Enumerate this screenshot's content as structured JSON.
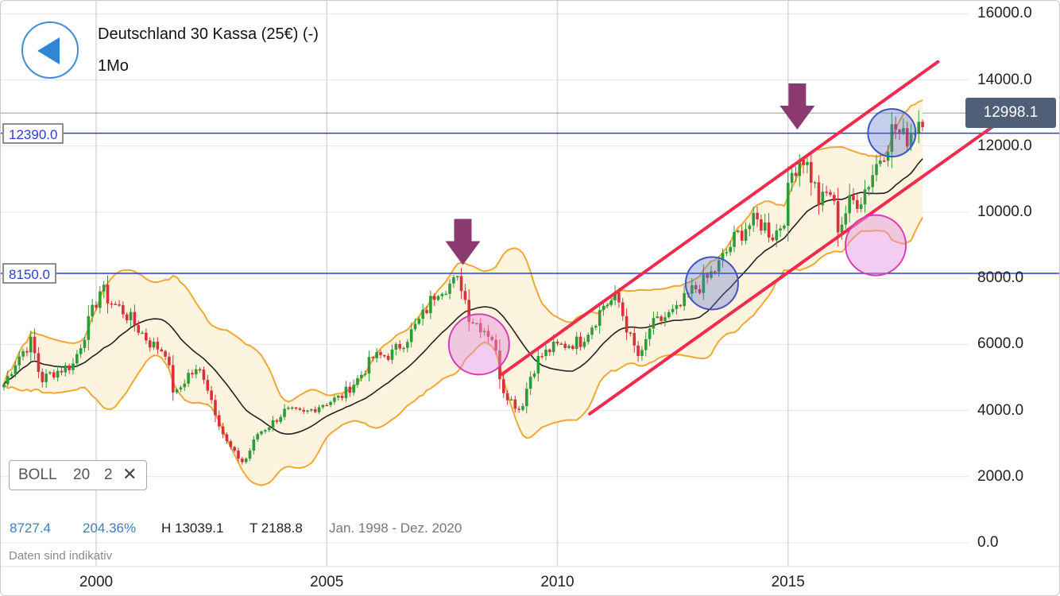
{
  "header": {
    "instrument": "Deutschland 30 Kassa (25€) (-)",
    "timeframe": "1Mo"
  },
  "levels": [
    {
      "label": "12390.0",
      "value": 12390
    },
    {
      "label": "8150.0",
      "value": 8150
    }
  ],
  "last_price": {
    "label": "12998.1",
    "value": 12998.1
  },
  "indicator": {
    "name": "BOLL",
    "period": "20",
    "stddev": "2",
    "remove_icon": "close-icon"
  },
  "stats": {
    "last": "8727.4",
    "change": "204.36%",
    "high": "H 13039.1",
    "low": "T 2188.8",
    "range": "Jan. 1998 - Dez. 2020"
  },
  "disclaimer": "Daten sind indikativ",
  "colors": {
    "up": "#2e9a3a",
    "down": "#d9303a",
    "band": "#f0a830",
    "band_fill": "#fdf4df",
    "middle": "#222222",
    "level": "#2a3fcf",
    "trend": "#f22a4e",
    "arrow": "#8b3a6f",
    "circle_blue": "#4055bf",
    "circle_pink": "#d63ab7",
    "badge": "#4f5f78"
  },
  "chart_data": {
    "type": "candlestick",
    "x_ticks": [
      "2000",
      "2005",
      "2010",
      "2015"
    ],
    "y_ticks": [
      "16000.0",
      "14000.0",
      "12000.0",
      "10000.0",
      "8000.0",
      "6000.0",
      "4000.0",
      "2000.0",
      "0.0"
    ],
    "ylim": [
      0,
      16000
    ],
    "xlim": [
      1998.0,
      2018.6
    ],
    "close_series": [
      [
        1998.0,
        4800
      ],
      [
        1998.3,
        5600
      ],
      [
        1998.6,
        6100
      ],
      [
        1998.8,
        4900
      ],
      [
        1999.0,
        5100
      ],
      [
        1999.5,
        5400
      ],
      [
        1999.9,
        6900
      ],
      [
        2000.1,
        7700
      ],
      [
        2000.3,
        7300
      ],
      [
        2000.6,
        7000
      ],
      [
        2000.9,
        6500
      ],
      [
        2001.2,
        6000
      ],
      [
        2001.5,
        5800
      ],
      [
        2001.7,
        4400
      ],
      [
        2002.0,
        5100
      ],
      [
        2002.3,
        5200
      ],
      [
        2002.6,
        3900
      ],
      [
        2002.8,
        3100
      ],
      [
        2003.0,
        2700
      ],
      [
        2003.2,
        2400
      ],
      [
        2003.5,
        3300
      ],
      [
        2003.8,
        3600
      ],
      [
        2004.1,
        4000
      ],
      [
        2004.5,
        3900
      ],
      [
        2004.9,
        4200
      ],
      [
        2005.3,
        4400
      ],
      [
        2005.7,
        5000
      ],
      [
        2006.0,
        5600
      ],
      [
        2006.4,
        5700
      ],
      [
        2006.8,
        6300
      ],
      [
        2007.1,
        6900
      ],
      [
        2007.4,
        7700
      ],
      [
        2007.6,
        7800
      ],
      [
        2007.9,
        7900
      ],
      [
        2008.1,
        6800
      ],
      [
        2008.4,
        6500
      ],
      [
        2008.6,
        6200
      ],
      [
        2008.8,
        4700
      ],
      [
        2009.0,
        4300
      ],
      [
        2009.2,
        4000
      ],
      [
        2009.4,
        5000
      ],
      [
        2009.6,
        5600
      ],
      [
        2009.9,
        5900
      ],
      [
        2010.2,
        6000
      ],
      [
        2010.5,
        6100
      ],
      [
        2010.8,
        6700
      ],
      [
        2011.0,
        7200
      ],
      [
        2011.3,
        7400
      ],
      [
        2011.6,
        6100
      ],
      [
        2011.8,
        5500
      ],
      [
        2012.0,
        6500
      ],
      [
        2012.3,
        6800
      ],
      [
        2012.6,
        7000
      ],
      [
        2012.9,
        7600
      ],
      [
        2013.2,
        7900
      ],
      [
        2013.5,
        8400
      ],
      [
        2013.8,
        9100
      ],
      [
        2014.1,
        9600
      ],
      [
        2014.4,
        9700
      ],
      [
        2014.7,
        9300
      ],
      [
        2014.9,
        9800
      ],
      [
        2015.1,
        11300
      ],
      [
        2015.3,
        11800
      ],
      [
        2015.5,
        11100
      ],
      [
        2015.7,
        10200
      ],
      [
        2015.9,
        10700
      ],
      [
        2016.1,
        9500
      ],
      [
        2016.3,
        10200
      ],
      [
        2016.6,
        10500
      ],
      [
        2016.9,
        11400
      ],
      [
        2017.1,
        12000
      ],
      [
        2017.3,
        12600
      ],
      [
        2017.5,
        12200
      ],
      [
        2017.7,
        12500
      ],
      [
        2017.9,
        13000
      ]
    ]
  }
}
